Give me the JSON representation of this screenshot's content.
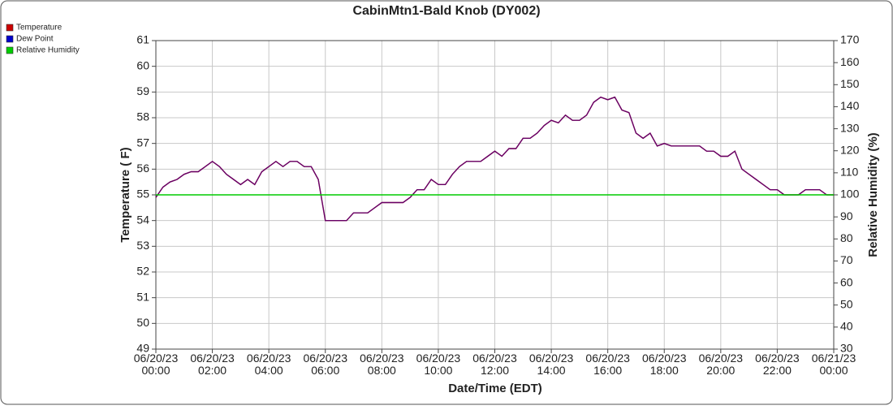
{
  "chart_data": {
    "type": "line",
    "title": "CabinMtn1-Bald Knob (DY002)",
    "xlabel": "Date/Time (EDT)",
    "ylabel": "Temperature ( F)",
    "y2label": "Relative Humidity (%)",
    "x": [
      "06/20/23 00:00",
      "06/20/23 00:15",
      "06/20/23 00:30",
      "06/20/23 00:45",
      "06/20/23 01:00",
      "06/20/23 01:15",
      "06/20/23 01:30",
      "06/20/23 01:45",
      "06/20/23 02:00",
      "06/20/23 02:15",
      "06/20/23 02:30",
      "06/20/23 02:45",
      "06/20/23 03:00",
      "06/20/23 03:15",
      "06/20/23 03:30",
      "06/20/23 03:45",
      "06/20/23 04:00",
      "06/20/23 04:15",
      "06/20/23 04:30",
      "06/20/23 04:45",
      "06/20/23 05:00",
      "06/20/23 05:15",
      "06/20/23 05:30",
      "06/20/23 05:45",
      "06/20/23 06:00",
      "06/20/23 06:15",
      "06/20/23 06:30",
      "06/20/23 06:45",
      "06/20/23 07:00",
      "06/20/23 07:15",
      "06/20/23 07:30",
      "06/20/23 07:45",
      "06/20/23 08:00",
      "06/20/23 08:15",
      "06/20/23 08:30",
      "06/20/23 08:45",
      "06/20/23 09:00",
      "06/20/23 09:15",
      "06/20/23 09:30",
      "06/20/23 09:45",
      "06/20/23 10:00",
      "06/20/23 10:15",
      "06/20/23 10:30",
      "06/20/23 10:45",
      "06/20/23 11:00",
      "06/20/23 11:15",
      "06/20/23 11:30",
      "06/20/23 11:45",
      "06/20/23 12:00",
      "06/20/23 12:15",
      "06/20/23 12:30",
      "06/20/23 12:45",
      "06/20/23 13:00",
      "06/20/23 13:15",
      "06/20/23 13:30",
      "06/20/23 13:45",
      "06/20/23 14:00",
      "06/20/23 14:15",
      "06/20/23 14:30",
      "06/20/23 14:45",
      "06/20/23 15:00",
      "06/20/23 15:15",
      "06/20/23 15:30",
      "06/20/23 15:45",
      "06/20/23 16:00",
      "06/20/23 16:15",
      "06/20/23 16:30",
      "06/20/23 16:45",
      "06/20/23 17:00",
      "06/20/23 17:15",
      "06/20/23 17:30",
      "06/20/23 17:45",
      "06/20/23 18:00",
      "06/20/23 18:15",
      "06/20/23 18:30",
      "06/20/23 18:45",
      "06/20/23 19:00",
      "06/20/23 19:15",
      "06/20/23 19:30",
      "06/20/23 19:45",
      "06/20/23 20:00",
      "06/20/23 20:15",
      "06/20/23 20:30",
      "06/20/23 20:45",
      "06/20/23 21:00",
      "06/20/23 21:15",
      "06/20/23 21:30",
      "06/20/23 21:45",
      "06/20/23 22:00",
      "06/20/23 22:15",
      "06/20/23 22:30",
      "06/20/23 22:45",
      "06/20/23 23:00",
      "06/20/23 23:15",
      "06/20/23 23:30",
      "06/20/23 23:45",
      "06/21/23 00:00"
    ],
    "series": [
      {
        "name": "Temperature",
        "color": "#cc0000",
        "values": [
          54.9,
          55.3,
          55.5,
          55.6,
          55.8,
          55.9,
          55.9,
          56.1,
          56.3,
          56.1,
          55.8,
          55.6,
          55.4,
          55.6,
          55.4,
          55.9,
          56.1,
          56.3,
          56.1,
          56.3,
          56.3,
          56.1,
          56.1,
          55.6,
          54.0,
          54.0,
          54.0,
          54.0,
          54.3,
          54.3,
          54.3,
          54.5,
          54.7,
          54.7,
          54.7,
          54.7,
          54.9,
          55.2,
          55.2,
          55.6,
          55.4,
          55.4,
          55.8,
          56.1,
          56.3,
          56.3,
          56.3,
          56.5,
          56.7,
          56.5,
          56.8,
          56.8,
          57.2,
          57.2,
          57.4,
          57.7,
          57.9,
          57.8,
          58.1,
          57.9,
          57.9,
          58.1,
          58.6,
          58.8,
          58.7,
          58.8,
          58.3,
          58.2,
          57.4,
          57.2,
          57.4,
          56.9,
          57.0,
          56.9,
          56.9,
          56.9,
          56.9,
          56.9,
          56.7,
          56.7,
          56.5,
          56.5,
          56.7,
          56.0,
          55.8,
          55.6,
          55.4,
          55.2,
          55.2,
          55.0,
          55.0,
          55.0,
          55.2,
          55.2,
          55.2,
          55.0,
          55.0
        ]
      },
      {
        "name": "Dew Point",
        "color": "#0000cc",
        "values": [
          54.9,
          55.3,
          55.5,
          55.6,
          55.8,
          55.9,
          55.9,
          56.1,
          56.3,
          56.1,
          55.8,
          55.6,
          55.4,
          55.6,
          55.4,
          55.9,
          56.1,
          56.3,
          56.1,
          56.3,
          56.3,
          56.1,
          56.1,
          55.6,
          54.0,
          54.0,
          54.0,
          54.0,
          54.3,
          54.3,
          54.3,
          54.5,
          54.7,
          54.7,
          54.7,
          54.7,
          54.9,
          55.2,
          55.2,
          55.6,
          55.4,
          55.4,
          55.8,
          56.1,
          56.3,
          56.3,
          56.3,
          56.5,
          56.7,
          56.5,
          56.8,
          56.8,
          57.2,
          57.2,
          57.4,
          57.7,
          57.9,
          57.8,
          58.1,
          57.9,
          57.9,
          58.1,
          58.6,
          58.8,
          58.7,
          58.8,
          58.3,
          58.2,
          57.4,
          57.2,
          57.4,
          56.9,
          57.0,
          56.9,
          56.9,
          56.9,
          56.9,
          56.9,
          56.7,
          56.7,
          56.5,
          56.5,
          56.7,
          56.0,
          55.8,
          55.6,
          55.4,
          55.2,
          55.2,
          55.0,
          55.0,
          55.0,
          55.2,
          55.2,
          55.2,
          55.0,
          55.0
        ]
      },
      {
        "name": "Relative Humidity",
        "color": "#00cc00",
        "axis": "y2",
        "values": [
          100,
          100,
          100,
          100,
          100,
          100,
          100,
          100,
          100,
          100,
          100,
          100,
          100,
          100,
          100,
          100,
          100,
          100,
          100,
          100,
          100,
          100,
          100,
          100,
          100,
          100,
          100,
          100,
          100,
          100,
          100,
          100,
          100,
          100,
          100,
          100,
          100,
          100,
          100,
          100,
          100,
          100,
          100,
          100,
          100,
          100,
          100,
          100,
          100,
          100,
          100,
          100,
          100,
          100,
          100,
          100,
          100,
          100,
          100,
          100,
          100,
          100,
          100,
          100,
          100,
          100,
          100,
          100,
          100,
          100,
          100,
          100,
          100,
          100,
          100,
          100,
          100,
          100,
          100,
          100,
          100,
          100,
          100,
          100,
          100,
          100,
          100,
          100,
          100,
          100,
          100,
          100,
          100,
          100,
          100,
          100,
          100
        ]
      }
    ],
    "xlim": [
      "06/20/23 00:00",
      "06/21/23 00:00"
    ],
    "xticks": [
      "06/20/23 00:00",
      "06/20/23 02:00",
      "06/20/23 04:00",
      "06/20/23 06:00",
      "06/20/23 08:00",
      "06/20/23 10:00",
      "06/20/23 12:00",
      "06/20/23 14:00",
      "06/20/23 16:00",
      "06/20/23 18:00",
      "06/20/23 20:00",
      "06/20/23 22:00",
      "06/21/23 00:00"
    ],
    "ylim": [
      49,
      61
    ],
    "yticks": [
      49,
      50,
      51,
      52,
      53,
      54,
      55,
      56,
      57,
      58,
      59,
      60,
      61
    ],
    "y2lim": [
      30,
      170
    ],
    "y2ticks": [
      30,
      40,
      50,
      60,
      70,
      80,
      90,
      100,
      110,
      120,
      130,
      140,
      150,
      160,
      170
    ],
    "grid": true,
    "legend": "top-left"
  }
}
